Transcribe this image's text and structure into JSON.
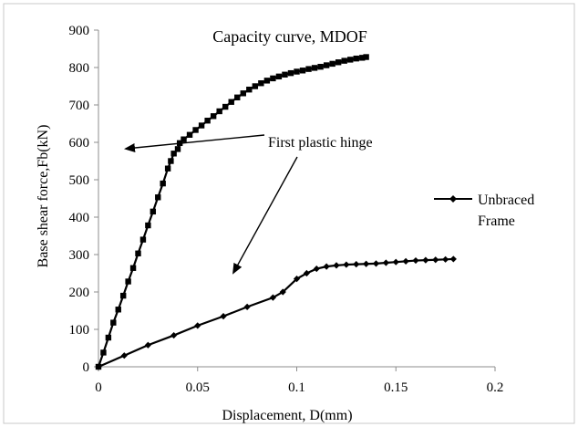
{
  "chart_data": {
    "type": "line",
    "title": "Capacity curve, MDOF",
    "xlabel": "Displacement,  D(mm)",
    "ylabel": "Base shear force,Fb(kN)",
    "xlim": [
      0,
      0.2
    ],
    "ylim": [
      0,
      900
    ],
    "x_ticks": [
      0,
      0.05,
      0.1,
      0.15,
      0.2
    ],
    "x_tick_labels": [
      "0",
      "0.05",
      "0.1",
      "0.15",
      "0.2"
    ],
    "y_ticks": [
      0,
      100,
      200,
      300,
      400,
      500,
      600,
      700,
      800,
      900
    ],
    "y_tick_labels": [
      "0",
      "100",
      "200",
      "300",
      "400",
      "500",
      "600",
      "700",
      "800",
      "900"
    ],
    "grid": false,
    "legend_position": "right",
    "series": [
      {
        "marker": "square",
        "color": "#000000",
        "x": [
          0,
          0.0025,
          0.005,
          0.0075,
          0.01,
          0.0125,
          0.015,
          0.0175,
          0.02,
          0.0225,
          0.025,
          0.0275,
          0.03,
          0.0325,
          0.035,
          0.0365,
          0.038,
          0.04,
          0.041,
          0.043,
          0.046,
          0.049,
          0.052,
          0.055,
          0.058,
          0.061,
          0.064,
          0.067,
          0.07,
          0.073,
          0.076,
          0.079,
          0.082,
          0.085,
          0.088,
          0.091,
          0.094,
          0.097,
          0.1,
          0.103,
          0.106,
          0.109,
          0.112,
          0.115,
          0.118,
          0.121,
          0.124,
          0.127,
          0.13,
          0.133,
          0.135
        ],
        "y": [
          0,
          38,
          78,
          118,
          153,
          190,
          228,
          264,
          303,
          340,
          378,
          415,
          453,
          490,
          530,
          550,
          570,
          582,
          598,
          608,
          620,
          633,
          645,
          658,
          670,
          683,
          695,
          708,
          720,
          731,
          741,
          750,
          758,
          765,
          771,
          776,
          781,
          785,
          789,
          792,
          796,
          799,
          802,
          806,
          810,
          814,
          818,
          821,
          824,
          826,
          828
        ]
      },
      {
        "name": "Unbraced Frame",
        "marker": "diamond",
        "color": "#000000",
        "x": [
          0,
          0.013,
          0.025,
          0.038,
          0.05,
          0.063,
          0.075,
          0.088,
          0.093,
          0.1,
          0.105,
          0.11,
          0.115,
          0.12,
          0.125,
          0.13,
          0.135,
          0.14,
          0.145,
          0.15,
          0.155,
          0.16,
          0.165,
          0.17,
          0.175,
          0.179
        ],
        "y": [
          0,
          30,
          58,
          84,
          110,
          135,
          160,
          185,
          200,
          235,
          250,
          262,
          268,
          271,
          273,
          274,
          275,
          276,
          278,
          280,
          282,
          284,
          285,
          286,
          287,
          288
        ]
      }
    ],
    "annotations": [
      {
        "text": "First plastic hinge"
      }
    ]
  }
}
